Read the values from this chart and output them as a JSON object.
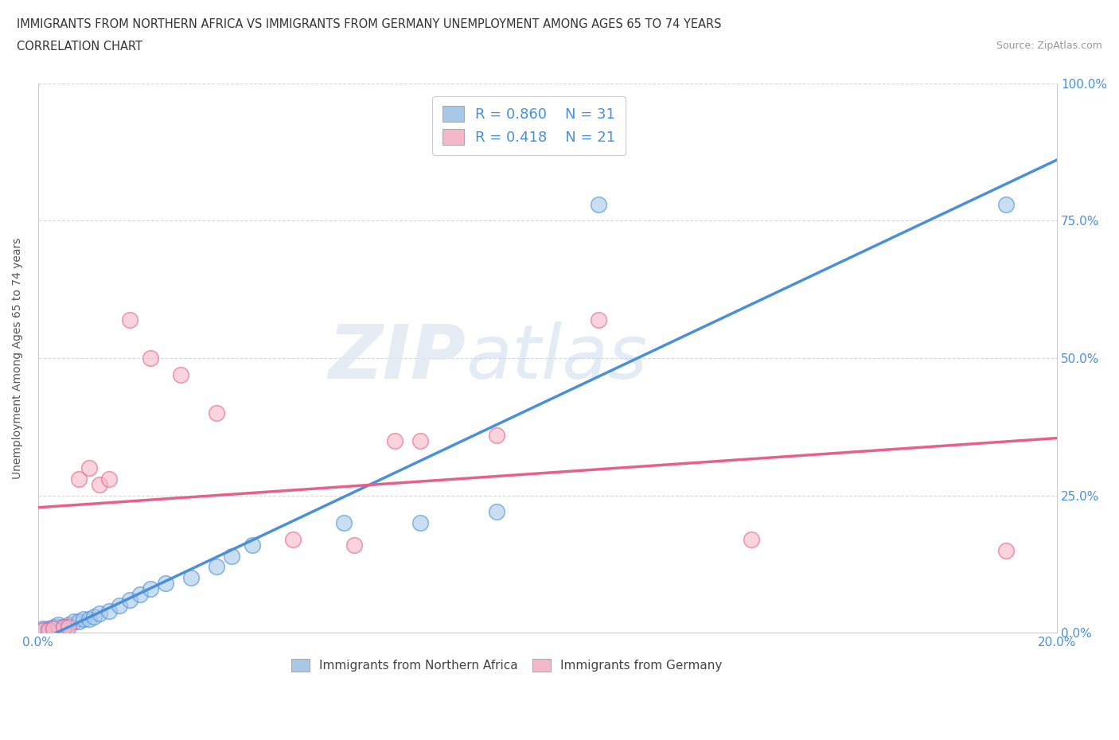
{
  "title_line1": "IMMIGRANTS FROM NORTHERN AFRICA VS IMMIGRANTS FROM GERMANY UNEMPLOYMENT AMONG AGES 65 TO 74 YEARS",
  "title_line2": "CORRELATION CHART",
  "source": "Source: ZipAtlas.com",
  "ylabel": "Unemployment Among Ages 65 to 74 years",
  "xmin": 0.0,
  "xmax": 0.2,
  "ymin": 0.0,
  "ymax": 1.0,
  "yticks": [
    0.0,
    0.25,
    0.5,
    0.75,
    1.0
  ],
  "ytick_labels": [
    "0.0%",
    "25.0%",
    "50.0%",
    "75.0%",
    "100.0%"
  ],
  "xticks": [
    0.0,
    0.04,
    0.08,
    0.12,
    0.16,
    0.2
  ],
  "xtick_labels": [
    "0.0%",
    "",
    "",
    "",
    "",
    "20.0%"
  ],
  "legend_r1": "R = 0.860",
  "legend_n1": "N = 31",
  "legend_r2": "R = 0.418",
  "legend_n2": "N = 21",
  "blue_color": "#a8c8e8",
  "pink_color": "#f5b8c8",
  "blue_line_color": "#4a90d9",
  "pink_line_color": "#e8608a",
  "blue_scatter": [
    [
      0.001,
      0.005
    ],
    [
      0.001,
      0.008
    ],
    [
      0.002,
      0.005
    ],
    [
      0.002,
      0.008
    ],
    [
      0.003,
      0.005
    ],
    [
      0.003,
      0.01
    ],
    [
      0.004,
      0.01
    ],
    [
      0.004,
      0.015
    ],
    [
      0.005,
      0.01
    ],
    [
      0.006,
      0.015
    ],
    [
      0.007,
      0.02
    ],
    [
      0.008,
      0.02
    ],
    [
      0.009,
      0.025
    ],
    [
      0.01,
      0.025
    ],
    [
      0.011,
      0.03
    ],
    [
      0.012,
      0.035
    ],
    [
      0.014,
      0.04
    ],
    [
      0.016,
      0.05
    ],
    [
      0.018,
      0.06
    ],
    [
      0.02,
      0.07
    ],
    [
      0.022,
      0.08
    ],
    [
      0.025,
      0.09
    ],
    [
      0.03,
      0.1
    ],
    [
      0.035,
      0.12
    ],
    [
      0.038,
      0.14
    ],
    [
      0.042,
      0.16
    ],
    [
      0.06,
      0.2
    ],
    [
      0.075,
      0.2
    ],
    [
      0.09,
      0.22
    ],
    [
      0.11,
      0.78
    ],
    [
      0.19,
      0.78
    ]
  ],
  "pink_scatter": [
    [
      0.001,
      0.005
    ],
    [
      0.002,
      0.005
    ],
    [
      0.003,
      0.008
    ],
    [
      0.005,
      0.01
    ],
    [
      0.006,
      0.01
    ],
    [
      0.008,
      0.28
    ],
    [
      0.01,
      0.3
    ],
    [
      0.012,
      0.27
    ],
    [
      0.014,
      0.28
    ],
    [
      0.018,
      0.57
    ],
    [
      0.022,
      0.5
    ],
    [
      0.028,
      0.47
    ],
    [
      0.035,
      0.4
    ],
    [
      0.05,
      0.17
    ],
    [
      0.062,
      0.16
    ],
    [
      0.07,
      0.35
    ],
    [
      0.075,
      0.35
    ],
    [
      0.09,
      0.36
    ],
    [
      0.11,
      0.57
    ],
    [
      0.14,
      0.17
    ],
    [
      0.19,
      0.15
    ]
  ],
  "watermark_zip": "ZIP",
  "watermark_atlas": "atlas",
  "background_color": "#ffffff",
  "grid_color": "#d0d8e8"
}
